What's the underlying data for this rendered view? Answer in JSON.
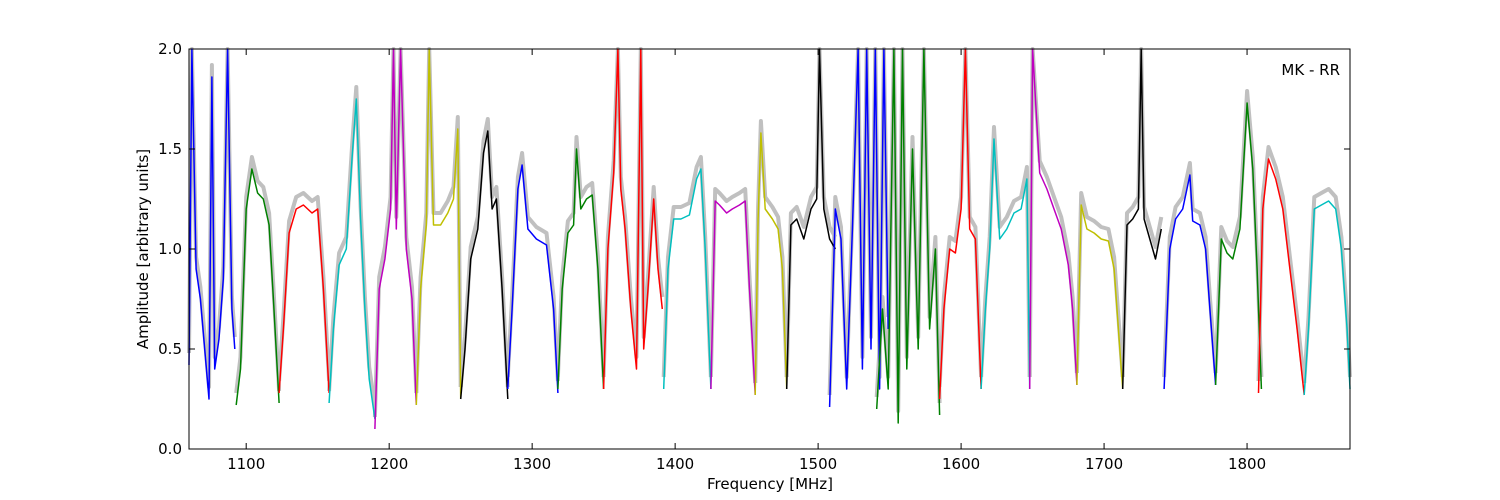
{
  "chart_data": {
    "type": "line",
    "title": "",
    "annotation": "MK - RR",
    "xlabel": "Frequency [MHz]",
    "ylabel": "Amplitude [arbitrary units]",
    "xlim": [
      1060,
      1872
    ],
    "ylim": [
      0.0,
      2.0
    ],
    "x_ticks": [
      1100,
      1200,
      1300,
      1400,
      1500,
      1600,
      1700,
      1800
    ],
    "y_ticks": [
      0.0,
      0.5,
      1.0,
      1.5,
      2.0
    ],
    "x_tick_labels": [
      "1100",
      "1200",
      "1300",
      "1400",
      "1500",
      "1600",
      "1700",
      "1800"
    ],
    "y_tick_labels": [
      "0.0",
      "0.5",
      "1.0",
      "1.5",
      "2.0"
    ],
    "grid": false,
    "background_color": "#c0c0c0",
    "series": [
      {
        "color": "#0000ff",
        "x": [
          1060,
          1062,
          1065,
          1068,
          1071,
          1074,
          1076,
          1078,
          1081,
          1084,
          1087,
          1090,
          1092
        ],
        "y": [
          0.42,
          2.0,
          0.9,
          0.75,
          0.5,
          0.25,
          1.86,
          0.4,
          0.55,
          0.85,
          2.0,
          0.7,
          0.5
        ]
      },
      {
        "color": "#008000",
        "x": [
          1093,
          1096,
          1100,
          1104,
          1108,
          1112,
          1116,
          1119,
          1123
        ],
        "y": [
          0.22,
          0.4,
          1.2,
          1.4,
          1.28,
          1.25,
          1.12,
          0.75,
          0.23
        ]
      },
      {
        "color": "#ff0000",
        "x": [
          1123,
          1126,
          1130,
          1135,
          1140,
          1146,
          1150,
          1154,
          1158
        ],
        "y": [
          0.28,
          0.6,
          1.08,
          1.2,
          1.22,
          1.18,
          1.2,
          0.8,
          0.28
        ]
      },
      {
        "color": "#00bfbf",
        "x": [
          1158,
          1161,
          1165,
          1170,
          1174,
          1177,
          1180,
          1183,
          1186,
          1190
        ],
        "y": [
          0.23,
          0.6,
          0.92,
          1.0,
          1.45,
          1.75,
          1.15,
          0.7,
          0.35,
          0.15
        ]
      },
      {
        "color": "#bf00bf",
        "x": [
          1190,
          1193,
          1197,
          1201,
          1203,
          1205,
          1208,
          1212,
          1216,
          1219
        ],
        "y": [
          0.1,
          0.8,
          0.95,
          1.2,
          2.0,
          1.1,
          2.0,
          1.0,
          0.75,
          0.22
        ]
      },
      {
        "color": "#bfbf00",
        "x": [
          1219,
          1222,
          1226,
          1228,
          1231,
          1236,
          1241,
          1245,
          1248,
          1250
        ],
        "y": [
          0.22,
          0.8,
          1.12,
          2.0,
          1.12,
          1.12,
          1.18,
          1.25,
          1.6,
          0.25
        ]
      },
      {
        "color": "#000000",
        "x": [
          1250,
          1253,
          1257,
          1262,
          1266,
          1269,
          1272,
          1275,
          1279,
          1283
        ],
        "y": [
          0.25,
          0.5,
          0.95,
          1.1,
          1.48,
          1.59,
          1.2,
          1.25,
          0.8,
          0.25
        ]
      },
      {
        "color": "#0000ff",
        "x": [
          1283,
          1286,
          1290,
          1293,
          1297,
          1303,
          1310,
          1315,
          1318
        ],
        "y": [
          0.3,
          0.7,
          1.3,
          1.42,
          1.1,
          1.05,
          1.02,
          0.7,
          0.28
        ]
      },
      {
        "color": "#008000",
        "x": [
          1318,
          1321,
          1325,
          1329,
          1331,
          1334,
          1338,
          1342,
          1346,
          1350
        ],
        "y": [
          0.3,
          0.8,
          1.08,
          1.12,
          1.5,
          1.2,
          1.25,
          1.27,
          0.9,
          0.3
        ]
      },
      {
        "color": "#ff0000",
        "x": [
          1350,
          1353,
          1357,
          1360,
          1362,
          1365,
          1369,
          1373,
          1376,
          1378,
          1381,
          1385,
          1388,
          1391
        ],
        "y": [
          0.3,
          1.0,
          1.38,
          2.0,
          1.3,
          1.1,
          0.7,
          0.4,
          2.0,
          0.5,
          0.8,
          1.25,
          0.9,
          0.7
        ]
      },
      {
        "color": "#00bfbf",
        "x": [
          1392,
          1395,
          1399,
          1404,
          1410,
          1415,
          1418,
          1421,
          1425
        ],
        "y": [
          0.3,
          0.9,
          1.15,
          1.15,
          1.17,
          1.35,
          1.4,
          1.0,
          0.3
        ]
      },
      {
        "color": "#bf00bf",
        "x": [
          1425,
          1428,
          1431,
          1436,
          1440,
          1445,
          1449,
          1452,
          1456
        ],
        "y": [
          0.3,
          1.24,
          1.22,
          1.18,
          1.2,
          1.22,
          1.24,
          0.8,
          0.27
        ]
      },
      {
        "color": "#bfbf00",
        "x": [
          1456,
          1458,
          1460,
          1463,
          1468,
          1472,
          1475,
          1478
        ],
        "y": [
          0.27,
          1.15,
          1.58,
          1.2,
          1.15,
          1.1,
          0.9,
          0.3
        ]
      },
      {
        "color": "#000000",
        "x": [
          1478,
          1481,
          1485,
          1490,
          1495,
          1499,
          1501,
          1504,
          1508,
          1512
        ],
        "y": [
          0.3,
          1.12,
          1.15,
          1.05,
          1.2,
          1.25,
          2.0,
          1.2,
          1.05,
          1.0
        ]
      },
      {
        "color": "#0000ff",
        "x": [
          1508,
          1512,
          1516,
          1520,
          1524,
          1528,
          1531,
          1534,
          1537,
          1540,
          1543,
          1546,
          1549
        ],
        "y": [
          0.21,
          1.2,
          1.05,
          0.3,
          1.1,
          2.0,
          0.4,
          2.0,
          0.5,
          2.0,
          0.3,
          2.0,
          0.6
        ]
      },
      {
        "color": "#008000",
        "x": [
          1541,
          1545,
          1549,
          1553,
          1556,
          1559,
          1562,
          1566,
          1570,
          1574,
          1578,
          1582,
          1585
        ],
        "y": [
          0.2,
          0.7,
          0.3,
          2.0,
          0.13,
          2.0,
          0.4,
          1.5,
          0.5,
          2.0,
          0.6,
          1.0,
          0.17
        ]
      },
      {
        "color": "#ff0000",
        "x": [
          1585,
          1588,
          1592,
          1596,
          1600,
          1603,
          1606,
          1610,
          1614
        ],
        "y": [
          0.25,
          0.7,
          1.0,
          0.98,
          1.2,
          2.0,
          1.1,
          1.05,
          0.3
        ]
      },
      {
        "color": "#00bfbf",
        "x": [
          1614,
          1617,
          1620,
          1623,
          1627,
          1632,
          1637,
          1642,
          1646,
          1648
        ],
        "y": [
          0.3,
          0.7,
          1.0,
          1.55,
          1.05,
          1.1,
          1.18,
          1.2,
          1.35,
          0.3
        ]
      },
      {
        "color": "#bf00bf",
        "x": [
          1648,
          1650,
          1655,
          1660,
          1665,
          1670,
          1675,
          1678,
          1681
        ],
        "y": [
          0.3,
          2.0,
          1.38,
          1.3,
          1.2,
          1.1,
          0.92,
          0.7,
          0.32
        ]
      },
      {
        "color": "#bfbf00",
        "x": [
          1681,
          1684,
          1688,
          1693,
          1698,
          1703,
          1707,
          1710,
          1713
        ],
        "y": [
          0.32,
          1.22,
          1.1,
          1.08,
          1.05,
          1.04,
          0.9,
          0.6,
          0.3
        ]
      },
      {
        "color": "#000000",
        "x": [
          1713,
          1716,
          1720,
          1724,
          1726,
          1728,
          1732,
          1736,
          1740
        ],
        "y": [
          0.3,
          1.12,
          1.15,
          1.2,
          2.0,
          1.15,
          1.05,
          0.95,
          1.1
        ]
      },
      {
        "color": "#0000ff",
        "x": [
          1742,
          1746,
          1750,
          1755,
          1760,
          1762,
          1767,
          1771,
          1774,
          1778
        ],
        "y": [
          0.3,
          1.0,
          1.15,
          1.2,
          1.37,
          1.14,
          1.12,
          1.0,
          0.7,
          0.32
        ]
      },
      {
        "color": "#008000",
        "x": [
          1778,
          1782,
          1786,
          1790,
          1795,
          1800,
          1804,
          1807,
          1810
        ],
        "y": [
          0.32,
          1.05,
          0.98,
          0.95,
          1.1,
          1.73,
          1.4,
          0.9,
          0.3
        ]
      },
      {
        "color": "#ff0000",
        "x": [
          1808,
          1811,
          1815,
          1820,
          1825,
          1830,
          1835,
          1840
        ],
        "y": [
          0.28,
          1.2,
          1.45,
          1.35,
          1.2,
          0.9,
          0.6,
          0.27
        ]
      },
      {
        "color": "#00bfbf",
        "x": [
          1840,
          1843,
          1847,
          1852,
          1857,
          1862,
          1866,
          1870,
          1872
        ],
        "y": [
          0.27,
          0.6,
          1.2,
          1.22,
          1.24,
          1.2,
          1.0,
          0.6,
          0.3
        ]
      }
    ],
    "legend": "none"
  }
}
